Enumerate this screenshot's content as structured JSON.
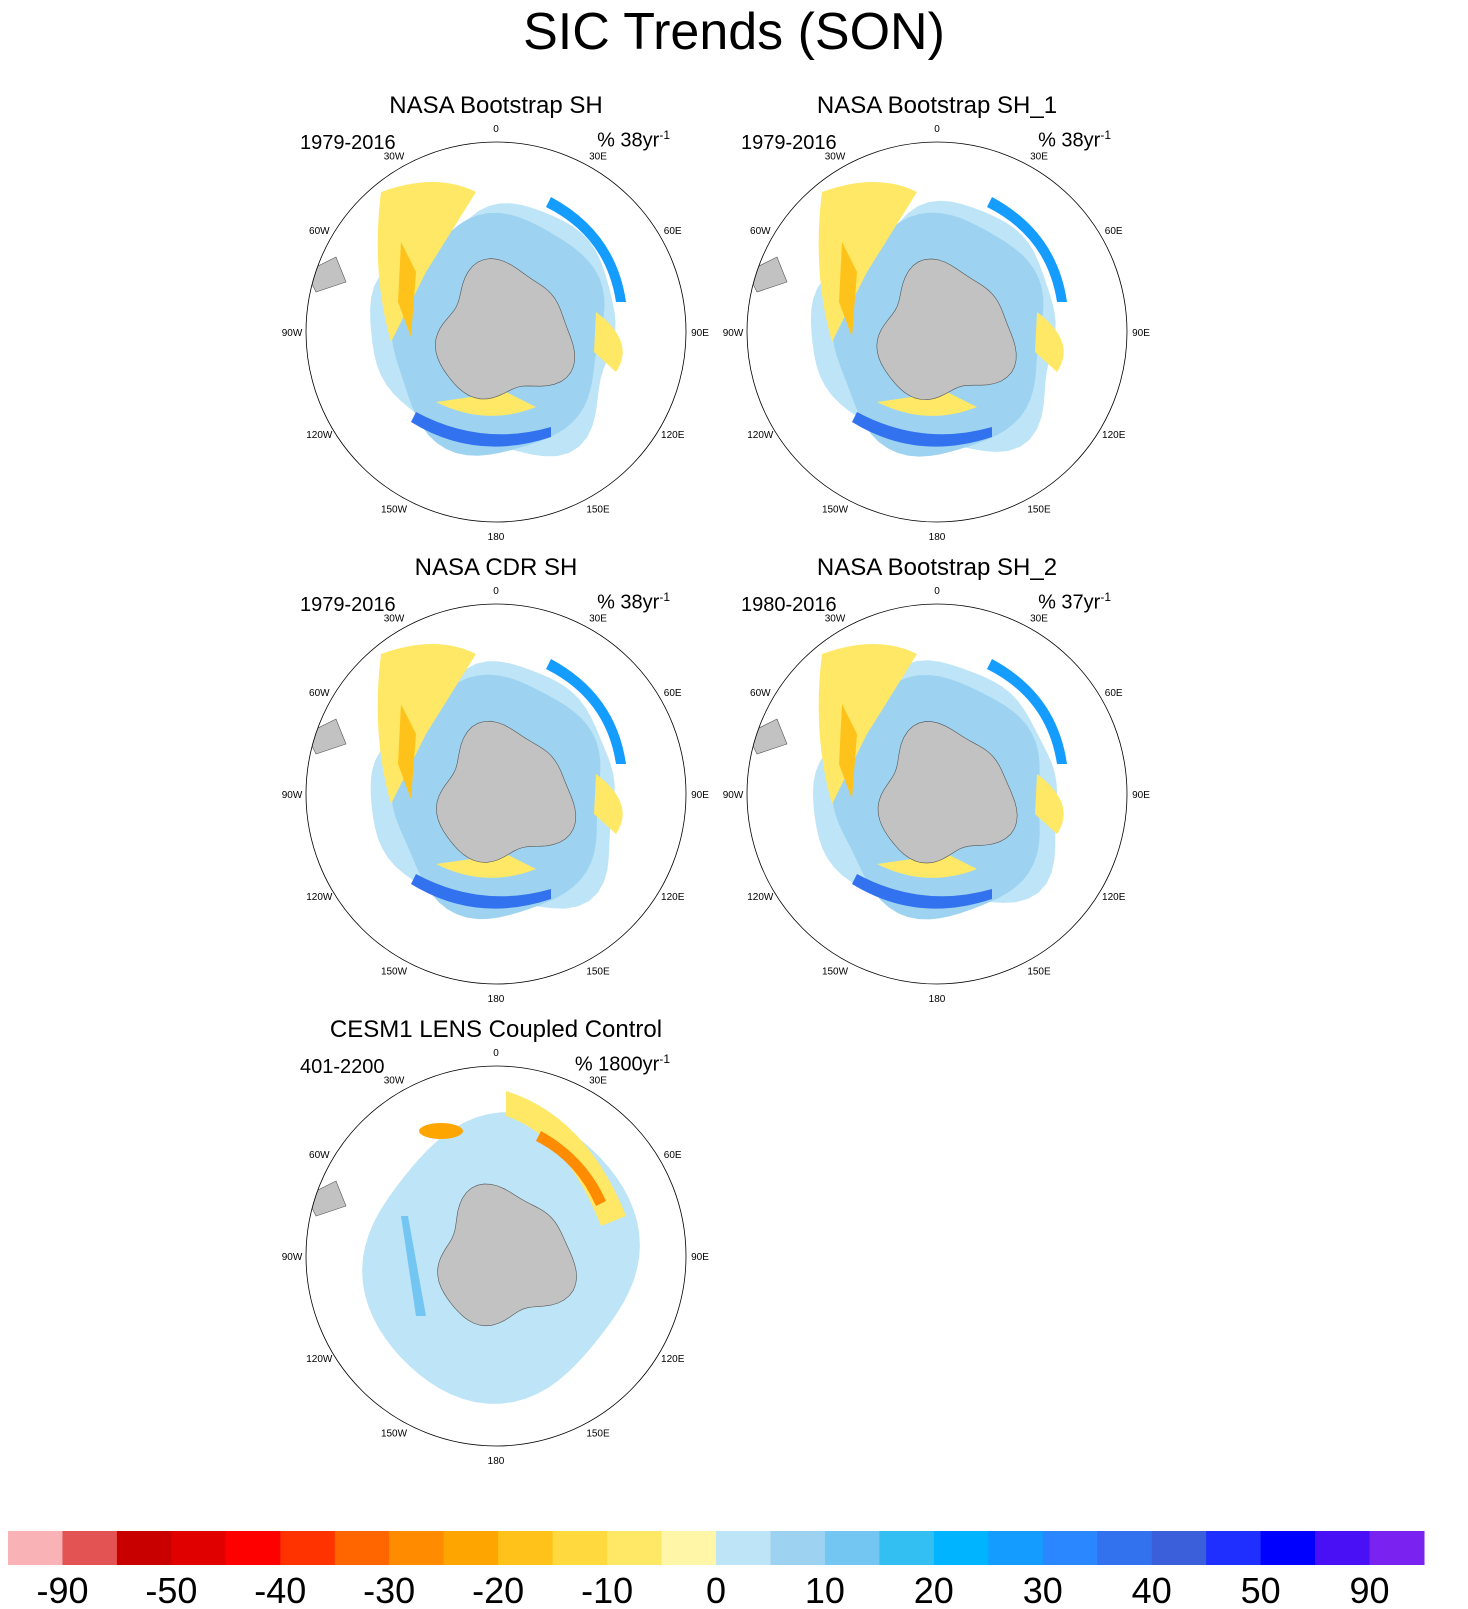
{
  "title": "SIC Trends (SON)",
  "panels": [
    {
      "title": "NASA Bootstrap SH",
      "period": "1979-2016",
      "units_prefix": "% 38yr",
      "units_exp": "-1",
      "pattern": "obs"
    },
    {
      "title": "NASA Bootstrap SH_1",
      "period": "1979-2016",
      "units_prefix": "% 38yr",
      "units_exp": "-1",
      "pattern": "obs"
    },
    {
      "title": "NASA CDR SH",
      "period": "1979-2016",
      "units_prefix": "% 38yr",
      "units_exp": "-1",
      "pattern": "obs"
    },
    {
      "title": "NASA Bootstrap SH_2",
      "period": "1980-2016",
      "units_prefix": "% 37yr",
      "units_exp": "-1",
      "pattern": "obs"
    },
    {
      "title": "CESM1 LENS Coupled Control",
      "period": "401-2200",
      "units_prefix": "% 1800yr",
      "units_exp": "-1",
      "pattern": "model"
    }
  ],
  "map_labels": {
    "lon_labels": [
      "0",
      "30E",
      "60E",
      "90E",
      "120E",
      "150E",
      "180",
      "150W",
      "120W",
      "90W",
      "60W",
      "30W"
    ]
  },
  "chart_data": {
    "type": "heatmap",
    "projection": "south polar stereographic",
    "variable": "sea ice concentration trend",
    "season": "SON",
    "colorbar": {
      "tick_labels": [
        "-90",
        "-50",
        "-40",
        "-30",
        "-20",
        "-10",
        "0",
        "10",
        "20",
        "30",
        "40",
        "50",
        "90"
      ],
      "colors": [
        "#f9b3b6",
        "#e45353",
        "#c80000",
        "#e10000",
        "#ff0000",
        "#ff3300",
        "#ff6600",
        "#ff8c00",
        "#ffa500",
        "#ffc21a",
        "#ffd93d",
        "#ffe866",
        "#fff6a8",
        "#bde4f7",
        "#9dd3f0",
        "#74c6f2",
        "#33bff2",
        "#00b4ff",
        "#149dff",
        "#2a87ff",
        "#3372ee",
        "#3b5edb",
        "#1f2fff",
        "#0000ff",
        "#4a10f5",
        "#7a22ef"
      ]
    },
    "colors": {
      "land": "#c2c2c2",
      "coastline": "#555555",
      "background": "#ffffff"
    }
  }
}
